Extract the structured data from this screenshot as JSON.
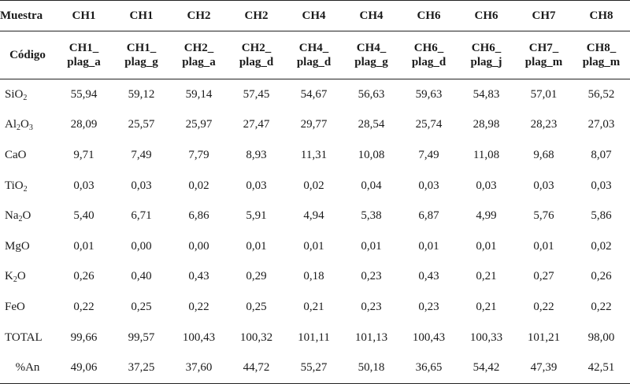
{
  "header": {
    "muestra_label": "Muestra",
    "codigo_label": "Código",
    "columns": [
      {
        "muestra": "CH1",
        "codigo_line1": "CH1_",
        "codigo_line2": "plag_a"
      },
      {
        "muestra": "CH1",
        "codigo_line1": "CH1_",
        "codigo_line2": "plag_g"
      },
      {
        "muestra": "CH2",
        "codigo_line1": "CH2_",
        "codigo_line2": "plag_a"
      },
      {
        "muestra": "CH2",
        "codigo_line1": "CH2_",
        "codigo_line2": "plag_d"
      },
      {
        "muestra": "CH4",
        "codigo_line1": "CH4_",
        "codigo_line2": "plag_d"
      },
      {
        "muestra": "CH4",
        "codigo_line1": "CH4_",
        "codigo_line2": "plag_g"
      },
      {
        "muestra": "CH6",
        "codigo_line1": "CH6_",
        "codigo_line2": "plag_d"
      },
      {
        "muestra": "CH6",
        "codigo_line1": "CH6_",
        "codigo_line2": "plag_j"
      },
      {
        "muestra": "CH7",
        "codigo_line1": "CH7_",
        "codigo_line2": "plag_m"
      },
      {
        "muestra": "CH8",
        "codigo_line1": "CH8_",
        "codigo_line2": "plag_m"
      }
    ]
  },
  "rows": [
    {
      "oxide_main": "SiO",
      "oxide_sub": "2",
      "oxide_tail": "",
      "values": [
        "55,94",
        "59,12",
        "59,14",
        "57,45",
        "54,67",
        "56,63",
        "59,63",
        "54,83",
        "57,01",
        "56,52"
      ]
    },
    {
      "oxide_main": "Al",
      "oxide_sub": "2",
      "oxide_tail": "O",
      "oxide_sub2": "3",
      "values": [
        "28,09",
        "25,57",
        "25,97",
        "27,47",
        "29,77",
        "28,54",
        "25,74",
        "28,98",
        "28,23",
        "27,03"
      ]
    },
    {
      "oxide_main": "CaO",
      "oxide_sub": "",
      "oxide_tail": "",
      "values": [
        "9,71",
        "7,49",
        "7,79",
        "8,93",
        "11,31",
        "10,08",
        "7,49",
        "11,08",
        "9,68",
        "8,07"
      ]
    },
    {
      "oxide_main": "TiO",
      "oxide_sub": "2",
      "oxide_tail": "",
      "values": [
        "0,03",
        "0,03",
        "0,02",
        "0,03",
        "0,02",
        "0,04",
        "0,03",
        "0,03",
        "0,03",
        "0,03"
      ]
    },
    {
      "oxide_main": "Na",
      "oxide_sub": "2",
      "oxide_tail": "O",
      "values": [
        "5,40",
        "6,71",
        "6,86",
        "5,91",
        "4,94",
        "5,38",
        "6,87",
        "4,99",
        "5,76",
        "5,86"
      ]
    },
    {
      "oxide_main": "MgO",
      "oxide_sub": "",
      "oxide_tail": "",
      "values": [
        "0,01",
        "0,00",
        "0,00",
        "0,01",
        "0,01",
        "0,01",
        "0,01",
        "0,01",
        "0,01",
        "0,02"
      ]
    },
    {
      "oxide_main": "K",
      "oxide_sub": "2",
      "oxide_tail": "O",
      "values": [
        "0,26",
        "0,40",
        "0,43",
        "0,29",
        "0,18",
        "0,23",
        "0,43",
        "0,21",
        "0,27",
        "0,26"
      ]
    },
    {
      "oxide_main": "FeO",
      "oxide_sub": "",
      "oxide_tail": "",
      "values": [
        "0,22",
        "0,25",
        "0,22",
        "0,25",
        "0,21",
        "0,23",
        "0,23",
        "0,21",
        "0,22",
        "0,22"
      ]
    },
    {
      "oxide_main": "TOTAL",
      "oxide_sub": "",
      "oxide_tail": "",
      "values": [
        "99,66",
        "99,57",
        "100,43",
        "100,32",
        "101,11",
        "101,13",
        "100,43",
        "100,33",
        "101,21",
        "98,00"
      ]
    },
    {
      "oxide_main": "%An",
      "oxide_sub": "",
      "oxide_tail": "",
      "centered": true,
      "values": [
        "49,06",
        "37,25",
        "37,60",
        "44,72",
        "55,27",
        "50,18",
        "36,65",
        "54,42",
        "47,39",
        "42,51"
      ]
    }
  ]
}
